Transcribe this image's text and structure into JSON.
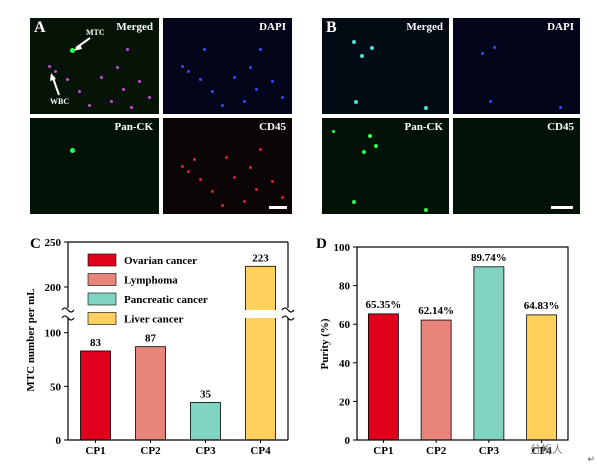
{
  "panel_a": {
    "letter": "A",
    "tiles": [
      "Merged",
      "DAPI",
      "Pan-CK",
      "CD45"
    ],
    "annotations": {
      "mtc": "MTC",
      "wbc": "WBC"
    }
  },
  "panel_b": {
    "letter": "B",
    "tiles": [
      "Merged",
      "DAPI",
      "Pan-CK",
      "CD45"
    ]
  },
  "chart_data": [
    {
      "type": "bar",
      "panel": "C",
      "categories": [
        "CP1",
        "CP2",
        "CP3",
        "CP4"
      ],
      "values": [
        83,
        87,
        35,
        223
      ],
      "data_labels": [
        "83",
        "87",
        "35",
        "223"
      ],
      "colors": [
        "#e0001b",
        "#e8857a",
        "#7fd3bf",
        "#ffd15c"
      ],
      "legend": [
        "Ovarian cancer",
        "Lymphoma",
        "Pancreatic cancer",
        "Liver cancer"
      ],
      "legend_position": "top-left",
      "ylabel": "MTC number per mL",
      "xlabel": "",
      "y_axis": "broken",
      "ylim_lower": [
        0,
        110
      ],
      "ylim_upper": [
        190,
        250
      ],
      "yticks_lower": [
        "0",
        "50",
        "100"
      ],
      "yticks_upper": [
        "200",
        "250"
      ]
    },
    {
      "type": "bar",
      "panel": "D",
      "categories": [
        "CP1",
        "CP2",
        "CP3",
        "CP4"
      ],
      "values": [
        65.35,
        62.14,
        89.74,
        64.83
      ],
      "data_labels": [
        "65.35%",
        "62.14%",
        "89.74%",
        "64.83%"
      ],
      "colors": [
        "#e0001b",
        "#e8857a",
        "#7fd3bf",
        "#ffd15c"
      ],
      "ylabel": "Purity (%)",
      "xlabel": "",
      "ylim": [
        0,
        100
      ],
      "yticks": [
        "0",
        "20",
        "40",
        "60",
        "80",
        "100"
      ]
    }
  ],
  "watermark": "分析人",
  "corner_mark": "↵"
}
